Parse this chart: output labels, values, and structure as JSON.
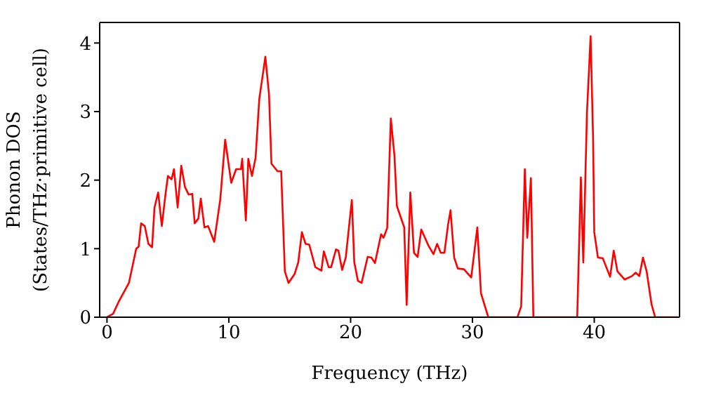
{
  "chart_data": {
    "type": "line",
    "xlabel": "Frequency (THz)",
    "ylabel": "Phonon DOS\n(States/THz·primitive cell)",
    "xlim": [
      -0.6,
      47
    ],
    "ylim": [
      0,
      4.3
    ],
    "xticks": [
      0,
      10,
      20,
      30,
      40
    ],
    "yticks": [
      0,
      1,
      2,
      3,
      4
    ],
    "grid": false,
    "legend": false,
    "marker": "none",
    "line_style": "solid",
    "x": [
      0,
      0.5,
      1.0,
      1.8,
      2.4,
      2.6,
      2.8,
      3.1,
      3.4,
      3.7,
      3.9,
      4.2,
      4.5,
      4.8,
      5.0,
      5.3,
      5.5,
      5.8,
      6.1,
      6.4,
      6.7,
      7.0,
      7.2,
      7.5,
      7.7,
      8.0,
      8.3,
      8.8,
      9.3,
      9.7,
      10.2,
      10.6,
      11.0,
      11.1,
      11.4,
      11.6,
      11.9,
      12.2,
      12.5,
      13.0,
      13.3,
      13.5,
      14.0,
      14.3,
      14.6,
      14.9,
      15.4,
      15.7,
      16.0,
      16.3,
      16.6,
      17.1,
      17.6,
      17.8,
      18.2,
      18.4,
      18.8,
      19.0,
      19.3,
      19.6,
      20.1,
      20.3,
      20.6,
      20.9,
      21.4,
      21.7,
      22.0,
      22.5,
      22.7,
      23.0,
      23.3,
      23.6,
      23.8,
      24.4,
      24.6,
      24.9,
      25.2,
      25.5,
      25.8,
      26.4,
      26.8,
      27.1,
      27.4,
      27.7,
      28.0,
      28.2,
      28.5,
      28.8,
      29.3,
      29.9,
      30.4,
      30.7,
      31.3,
      33.7,
      34.0,
      34.3,
      34.5,
      34.8,
      35.0,
      38.6,
      38.9,
      39.1,
      39.4,
      39.7,
      39.9,
      40.0,
      40.3,
      40.7,
      41.3,
      41.6,
      41.9,
      42.5,
      43.1,
      43.4,
      43.7,
      44.0,
      44.3,
      44.7,
      45.0,
      46.9
    ],
    "series": [
      {
        "color": "#ff0000",
        "values": [
          0,
          0.05,
          0.24,
          0.5,
          1.0,
          1.03,
          1.37,
          1.33,
          1.07,
          1.02,
          1.6,
          1.82,
          1.33,
          1.79,
          2.06,
          2.01,
          2.16,
          1.6,
          2.21,
          1.9,
          1.79,
          1.8,
          1.37,
          1.44,
          1.73,
          1.31,
          1.33,
          1.1,
          1.72,
          2.59,
          1.96,
          2.16,
          2.16,
          2.31,
          1.41,
          2.31,
          2.06,
          2.33,
          3.18,
          3.8,
          3.25,
          2.24,
          2.13,
          2.13,
          0.67,
          0.5,
          0.63,
          0.8,
          1.24,
          1.07,
          1.06,
          0.73,
          0.68,
          0.96,
          0.73,
          0.73,
          0.99,
          0.97,
          0.69,
          0.87,
          1.71,
          0.8,
          0.53,
          0.5,
          0.88,
          0.87,
          0.79,
          1.21,
          1.16,
          1.3,
          2.9,
          2.35,
          1.62,
          1.31,
          0.18,
          1.82,
          0.94,
          0.88,
          1.28,
          1.04,
          0.92,
          1.07,
          0.94,
          0.94,
          1.35,
          1.56,
          0.87,
          0.71,
          0.7,
          0.58,
          1.31,
          0.35,
          0,
          0,
          0.16,
          2.16,
          1.16,
          2.03,
          0,
          0,
          2.04,
          0.8,
          2.98,
          4.1,
          2.64,
          1.24,
          0.87,
          0.86,
          0.59,
          0.97,
          0.67,
          0.55,
          0.6,
          0.65,
          0.6,
          0.87,
          0.67,
          0.19,
          0,
          0
        ]
      }
    ]
  }
}
